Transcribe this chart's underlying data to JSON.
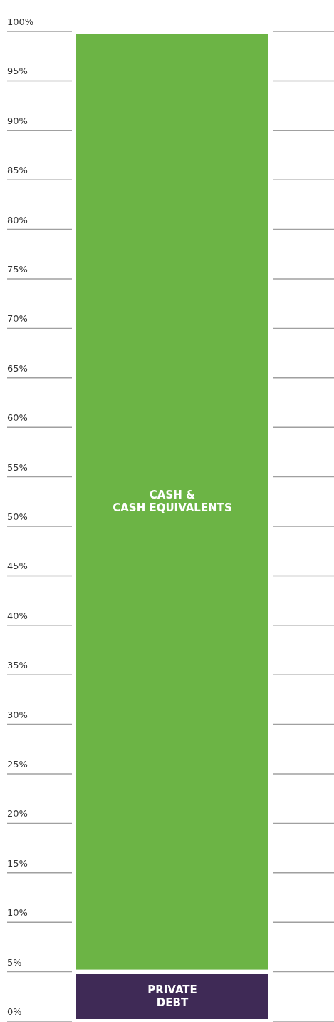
{
  "chart_data": {
    "type": "bar",
    "stacked": true,
    "categories": [
      null
    ],
    "series": [
      {
        "name": "PRIVATE\nDEBT",
        "color": "#3f2a56",
        "values": [
          5
        ]
      },
      {
        "name": "CASH &\nCASH EQUIVALENTS",
        "color": "#6cb445",
        "values": [
          95
        ]
      }
    ],
    "ylim": [
      0,
      100
    ],
    "yticks": [
      {
        "value": 0,
        "label": "0%"
      },
      {
        "value": 5,
        "label": "5%"
      },
      {
        "value": 10,
        "label": "10%"
      },
      {
        "value": 15,
        "label": "15%"
      },
      {
        "value": 20,
        "label": "20%"
      },
      {
        "value": 25,
        "label": "25%"
      },
      {
        "value": 30,
        "label": "30%"
      },
      {
        "value": 35,
        "label": "35%"
      },
      {
        "value": 40,
        "label": "40%"
      },
      {
        "value": 45,
        "label": "45%"
      },
      {
        "value": 50,
        "label": "50%"
      },
      {
        "value": 55,
        "label": "55%"
      },
      {
        "value": 60,
        "label": "60%"
      },
      {
        "value": 65,
        "label": "65%"
      },
      {
        "value": 70,
        "label": "70%"
      },
      {
        "value": 75,
        "label": "75%"
      },
      {
        "value": 80,
        "label": "80%"
      },
      {
        "value": 85,
        "label": "85%"
      },
      {
        "value": 90,
        "label": "90%"
      },
      {
        "value": 95,
        "label": "95%"
      },
      {
        "value": 100,
        "label": "100%"
      }
    ],
    "grid": "y"
  }
}
